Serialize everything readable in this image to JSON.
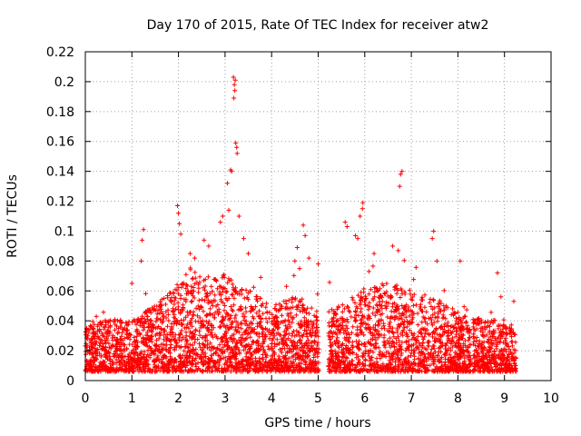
{
  "chart_data": {
    "type": "scatter",
    "title": "Day 170 of 2015, Rate Of TEC Index for receiver atw2",
    "xlabel": "GPS time / hours",
    "ylabel": "ROTI / TECUs",
    "xlim": [
      0,
      10
    ],
    "ylim": [
      0,
      0.22
    ],
    "xticks": [
      "0",
      "1",
      "2",
      "3",
      "4",
      "5",
      "6",
      "7",
      "8",
      "9",
      "10"
    ],
    "yticks": [
      "0",
      "0.02",
      "0.04",
      "0.06",
      "0.08",
      "0.1",
      "0.12",
      "0.14",
      "0.16",
      "0.18",
      "0.2",
      "0.22"
    ],
    "grid": true,
    "marker": "+",
    "color": "#ff0000",
    "series": [
      {
        "name": "ROTI",
        "density_envelope": [
          {
            "x": 0.0,
            "base_max": 0.03
          },
          {
            "x": 0.5,
            "base_max": 0.035
          },
          {
            "x": 1.0,
            "base_max": 0.035
          },
          {
            "x": 1.5,
            "base_max": 0.045
          },
          {
            "x": 2.0,
            "base_max": 0.06
          },
          {
            "x": 2.5,
            "base_max": 0.065
          },
          {
            "x": 3.0,
            "base_max": 0.065
          },
          {
            "x": 3.5,
            "base_max": 0.055
          },
          {
            "x": 4.0,
            "base_max": 0.045
          },
          {
            "x": 4.5,
            "base_max": 0.05
          },
          {
            "x": 5.0,
            "base_max": 0.04
          },
          {
            "x": 5.5,
            "base_max": 0.045
          },
          {
            "x": 6.0,
            "base_max": 0.055
          },
          {
            "x": 6.5,
            "base_max": 0.06
          },
          {
            "x": 7.0,
            "base_max": 0.055
          },
          {
            "x": 7.5,
            "base_max": 0.05
          },
          {
            "x": 8.0,
            "base_max": 0.04
          },
          {
            "x": 8.5,
            "base_max": 0.035
          },
          {
            "x": 9.0,
            "base_max": 0.035
          },
          {
            "x": 9.25,
            "base_max": 0.03
          }
        ],
        "gaps": [
          [
            5.02,
            5.22
          ],
          [
            8.28,
            8.32
          ]
        ],
        "x_range": [
          0.0,
          9.25
        ],
        "notable_points": [
          {
            "x": 1.25,
            "y": 0.101
          },
          {
            "x": 1.22,
            "y": 0.094
          },
          {
            "x": 1.2,
            "y": 0.08
          },
          {
            "x": 1.0,
            "y": 0.065
          },
          {
            "x": 1.98,
            "y": 0.117
          },
          {
            "x": 2.0,
            "y": 0.112
          },
          {
            "x": 2.02,
            "y": 0.105
          },
          {
            "x": 2.05,
            "y": 0.098
          },
          {
            "x": 2.25,
            "y": 0.085
          },
          {
            "x": 2.35,
            "y": 0.082
          },
          {
            "x": 2.55,
            "y": 0.094
          },
          {
            "x": 2.65,
            "y": 0.09
          },
          {
            "x": 2.9,
            "y": 0.106
          },
          {
            "x": 2.95,
            "y": 0.11
          },
          {
            "x": 3.05,
            "y": 0.132
          },
          {
            "x": 3.08,
            "y": 0.114
          },
          {
            "x": 3.12,
            "y": 0.141
          },
          {
            "x": 3.14,
            "y": 0.14
          },
          {
            "x": 3.18,
            "y": 0.203
          },
          {
            "x": 3.2,
            "y": 0.198
          },
          {
            "x": 3.22,
            "y": 0.201
          },
          {
            "x": 3.21,
            "y": 0.194
          },
          {
            "x": 3.19,
            "y": 0.189
          },
          {
            "x": 3.23,
            "y": 0.159
          },
          {
            "x": 3.25,
            "y": 0.156
          },
          {
            "x": 3.26,
            "y": 0.152
          },
          {
            "x": 3.3,
            "y": 0.11
          },
          {
            "x": 3.4,
            "y": 0.095
          },
          {
            "x": 3.5,
            "y": 0.085
          },
          {
            "x": 4.55,
            "y": 0.089
          },
          {
            "x": 4.5,
            "y": 0.08
          },
          {
            "x": 4.6,
            "y": 0.075
          },
          {
            "x": 4.8,
            "y": 0.082
          },
          {
            "x": 4.72,
            "y": 0.097
          },
          {
            "x": 4.68,
            "y": 0.104
          },
          {
            "x": 5.0,
            "y": 0.078
          },
          {
            "x": 5.58,
            "y": 0.106
          },
          {
            "x": 5.62,
            "y": 0.103
          },
          {
            "x": 5.8,
            "y": 0.097
          },
          {
            "x": 5.85,
            "y": 0.095
          },
          {
            "x": 5.9,
            "y": 0.11
          },
          {
            "x": 5.95,
            "y": 0.115
          },
          {
            "x": 5.96,
            "y": 0.119
          },
          {
            "x": 6.2,
            "y": 0.085
          },
          {
            "x": 6.6,
            "y": 0.09
          },
          {
            "x": 6.72,
            "y": 0.087
          },
          {
            "x": 6.75,
            "y": 0.13
          },
          {
            "x": 6.77,
            "y": 0.138
          },
          {
            "x": 6.8,
            "y": 0.14
          },
          {
            "x": 7.45,
            "y": 0.095
          },
          {
            "x": 7.48,
            "y": 0.1
          },
          {
            "x": 7.55,
            "y": 0.08
          },
          {
            "x": 8.05,
            "y": 0.08
          },
          {
            "x": 8.85,
            "y": 0.072
          },
          {
            "x": 9.2,
            "y": 0.053
          }
        ]
      }
    ]
  }
}
